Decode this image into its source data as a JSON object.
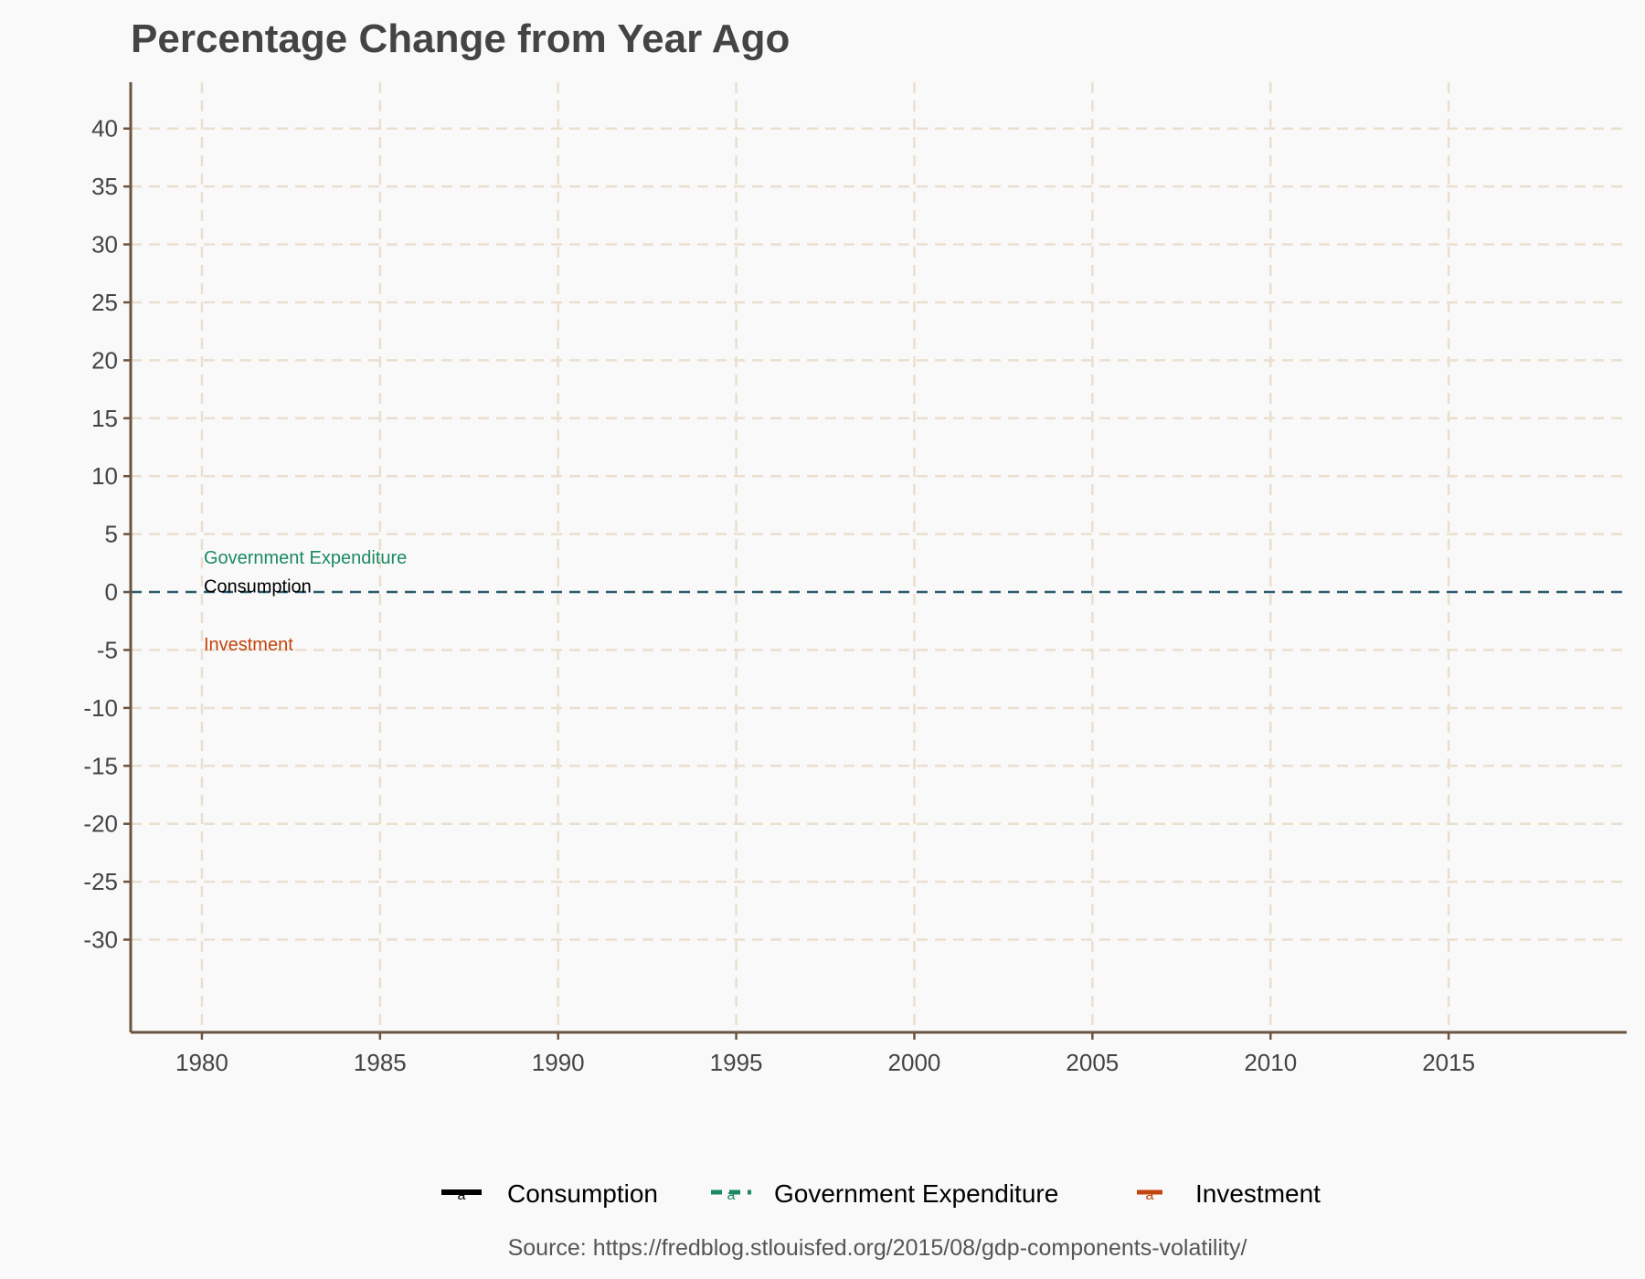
{
  "chart_data": {
    "type": "line",
    "title": "Percentage Change from Year Ago",
    "xlabel": "",
    "ylabel": "",
    "xlim": [
      1978,
      2020
    ],
    "ylim": [
      -38,
      44
    ],
    "x_ticks": [
      1980,
      1985,
      1990,
      1995,
      2000,
      2005,
      2010,
      2015
    ],
    "y_ticks": [
      -30,
      -25,
      -20,
      -15,
      -10,
      -5,
      0,
      5,
      10,
      15,
      20,
      25,
      30,
      35,
      40
    ],
    "grid": true,
    "reference_line": {
      "y": 0,
      "style": "dashed",
      "color": "#2a5b6e"
    },
    "series": [
      {
        "name": "Consumption",
        "color": "#000000",
        "values": []
      },
      {
        "name": "Government Expenditure",
        "color": "#1b8a62",
        "values": []
      },
      {
        "name": "Investment",
        "color": "#c2440e",
        "values": []
      }
    ],
    "annotations": [
      {
        "text": "Government Expenditure",
        "x": 1980,
        "y": 3,
        "color": "#1b8a62"
      },
      {
        "text": "Consumption",
        "x": 1980,
        "y": 0.5,
        "color": "#000000"
      },
      {
        "text": "Investment",
        "x": 1980,
        "y": -4.5,
        "color": "#c2440e"
      }
    ],
    "legend_position": "bottom",
    "legend_key_label": "a",
    "source": "Source: https://fredblog.stlouisfed.org/2015/08/gdp-components-volatility/"
  },
  "colors": {
    "background": "#f9f9f9",
    "axis": "#6b5440",
    "grid": "#eadfcf",
    "text": "#444444"
  }
}
